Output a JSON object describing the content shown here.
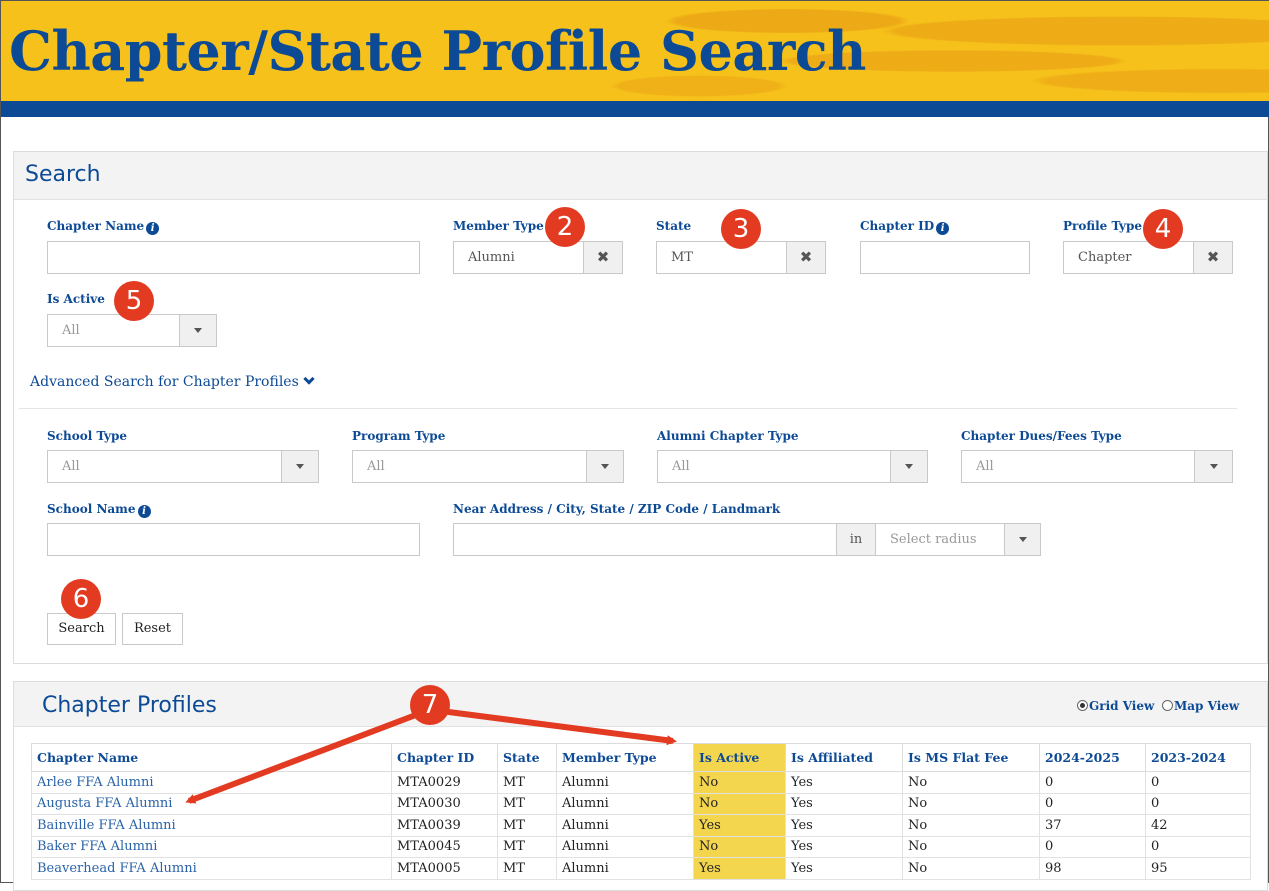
{
  "header": {
    "title": "Chapter/State Profile Search"
  },
  "search": {
    "title": "Search",
    "chapter_name": {
      "label": "Chapter Name",
      "value": ""
    },
    "member_type": {
      "label": "Member Type",
      "value": "Alumni"
    },
    "state": {
      "label": "State",
      "value": "MT"
    },
    "chapter_id": {
      "label": "Chapter ID",
      "value": ""
    },
    "profile_type": {
      "label": "Profile Type",
      "value": "Chapter"
    },
    "is_active": {
      "label": "Is Active",
      "value": "All"
    },
    "advanced_link": "Advanced Search for Chapter Profiles",
    "school_type": {
      "label": "School Type",
      "value": "All"
    },
    "program_type": {
      "label": "Program Type",
      "value": "All"
    },
    "alumni_chapter_type": {
      "label": "Alumni Chapter Type",
      "value": "All"
    },
    "dues_type": {
      "label": "Chapter Dues/Fees Type",
      "value": "All"
    },
    "school_name": {
      "label": "School Name",
      "value": ""
    },
    "near_address": {
      "label": "Near Address / City, State / ZIP Code / Landmark",
      "value": "",
      "in_label": "in",
      "radius_placeholder": "Select radius"
    },
    "search_button": "Search",
    "reset_button": "Reset"
  },
  "badges": {
    "b2": "2",
    "b3": "3",
    "b4": "4",
    "b5": "5",
    "b6": "6",
    "b7": "7"
  },
  "results": {
    "title": "Chapter Profiles",
    "grid_view": "Grid View",
    "map_view": "Map View",
    "selected_view": "grid",
    "columns": [
      "Chapter Name",
      "Chapter ID",
      "State",
      "Member Type",
      "Is Active",
      "Is Affiliated",
      "Is MS Flat Fee",
      "2024-2025",
      "2023-2024"
    ],
    "rows": [
      [
        "Arlee FFA Alumni",
        "MTA0029",
        "MT",
        "Alumni",
        "No",
        "Yes",
        "No",
        "0",
        "0"
      ],
      [
        "Augusta FFA Alumni",
        "MTA0030",
        "MT",
        "Alumni",
        "No",
        "Yes",
        "No",
        "0",
        "0"
      ],
      [
        "Bainville FFA Alumni",
        "MTA0039",
        "MT",
        "Alumni",
        "Yes",
        "Yes",
        "No",
        "37",
        "42"
      ],
      [
        "Baker FFA Alumni",
        "MTA0045",
        "MT",
        "Alumni",
        "No",
        "Yes",
        "No",
        "0",
        "0"
      ],
      [
        "Beaverhead FFA Alumni",
        "MTA0005",
        "MT",
        "Alumni",
        "Yes",
        "Yes",
        "No",
        "98",
        "95"
      ]
    ]
  },
  "colors": {
    "brand_blue": "#0c4a95",
    "banner_gold": "#f6c11a",
    "badge_red": "#e23b22",
    "highlight": "#f3d54e"
  },
  "icons": [
    "info-icon",
    "clear-x-icon",
    "chevron-down-icon",
    "caret-down-icon",
    "radio-icon"
  ]
}
